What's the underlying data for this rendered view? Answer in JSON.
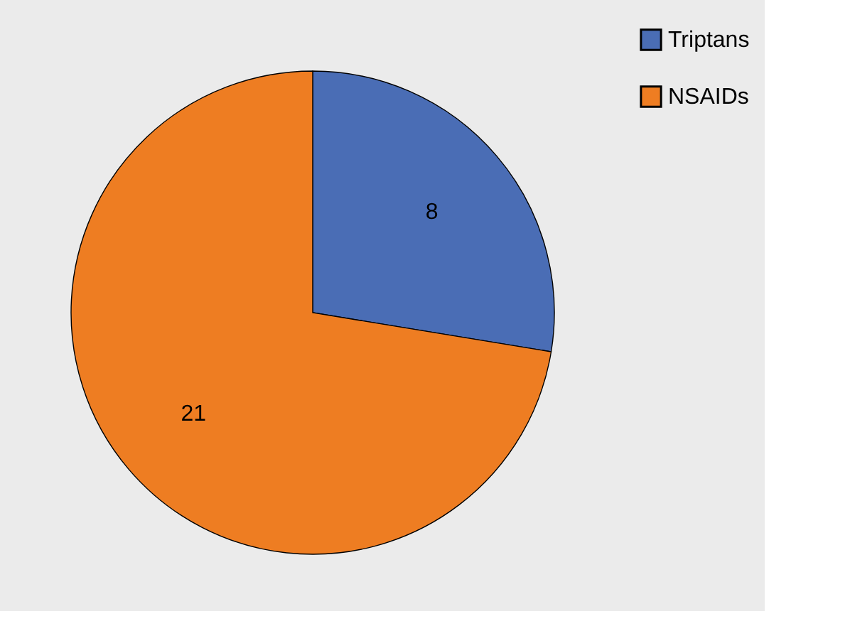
{
  "chart_data": {
    "type": "pie",
    "categories": [
      "Triptans",
      "NSAIDs"
    ],
    "values": [
      8,
      21
    ],
    "colors": [
      "#4a6db5",
      "#ee7d22"
    ],
    "data_labels": true,
    "legend": "right"
  }
}
